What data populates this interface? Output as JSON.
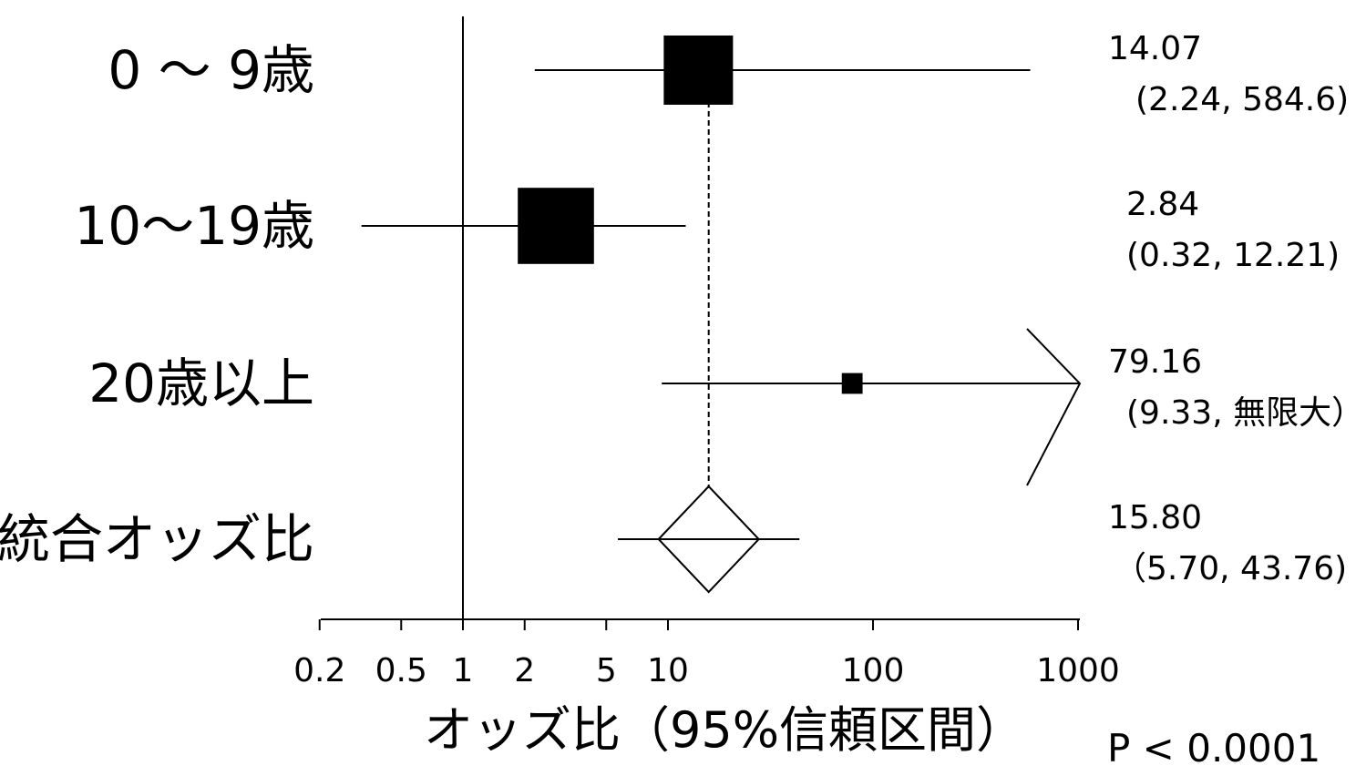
{
  "chart_data": {
    "type": "forest",
    "scale": "log",
    "reference_line": 1,
    "pooled_line": 15.8,
    "xlim": [
      0.2,
      1000
    ],
    "xticks": [
      {
        "value": 0.2,
        "label": "0.2"
      },
      {
        "value": 0.5,
        "label": "0.5"
      },
      {
        "value": 1,
        "label": "1"
      },
      {
        "value": 2,
        "label": "2"
      },
      {
        "value": 5,
        "label": "5"
      },
      {
        "value": 10,
        "label": "10"
      },
      {
        "value": 100,
        "label": "100"
      },
      {
        "value": 1000,
        "label": "1000"
      }
    ],
    "xlabel": "オッズ比（95%信頼区間）",
    "p_value_text": "P < 0.0001",
    "rows": [
      {
        "label": "0 〜 9歳",
        "estimate": 14.07,
        "lower": 2.24,
        "upper": 584.6,
        "weight": 1.0,
        "or_text": "14.07",
        "ci_text": "(2.24, 584.6)",
        "marker": "square"
      },
      {
        "label": "10〜19歳",
        "estimate": 2.84,
        "lower": 0.32,
        "upper": 12.21,
        "weight": 1.1,
        "or_text": "2.84",
        "ci_text": "(0.32, 12.21)",
        "marker": "square"
      },
      {
        "label": "20歳以上",
        "estimate": 79.16,
        "lower": 9.33,
        "upper": null,
        "weight": 0.3,
        "or_text": "79.16",
        "ci_text": "(9.33, 無限大）",
        "marker": "square",
        "upper_arrow": true
      },
      {
        "label": "統合オッズ比",
        "estimate": 15.8,
        "lower": 5.7,
        "upper": 43.76,
        "or_text": "15.80",
        "ci_text": "（5.70, 43.76)",
        "marker": "diamond"
      }
    ]
  }
}
